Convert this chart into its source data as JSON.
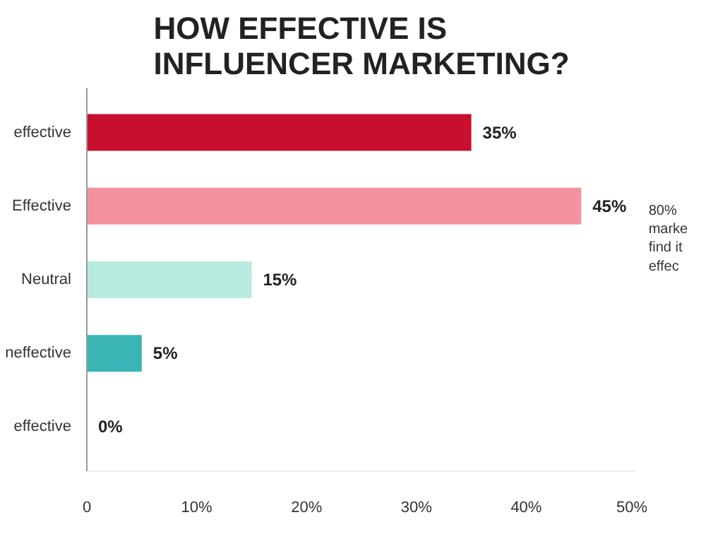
{
  "chart_data": {
    "type": "bar",
    "orientation": "horizontal",
    "title": "HOW EFFECTIVE IS\nINFLUENCER MARKETING?",
    "categories": [
      "effective",
      "Effective",
      "Neutral",
      "neffective",
      "effective"
    ],
    "values": [
      35,
      45,
      15,
      5,
      0
    ],
    "colors": [
      "#c8102e",
      "#f4919f",
      "#b8ece0",
      "#3ab5b5",
      "#3ab5b5"
    ],
    "value_labels": [
      "35%",
      "45%",
      "15%",
      "5%",
      "0%"
    ],
    "xlim": [
      0,
      50
    ],
    "xticks": [
      0,
      {
        "value": 10,
        "label": "10%"
      },
      {
        "value": 20,
        "label": "20%"
      },
      {
        "value": 30,
        "label": "30%"
      },
      {
        "value": 40,
        "label": "40%"
      },
      {
        "value": 50,
        "label": "50%"
      }
    ],
    "grid": false,
    "annotations": [
      "80%\nmarke\nfind it\neffec"
    ]
  }
}
